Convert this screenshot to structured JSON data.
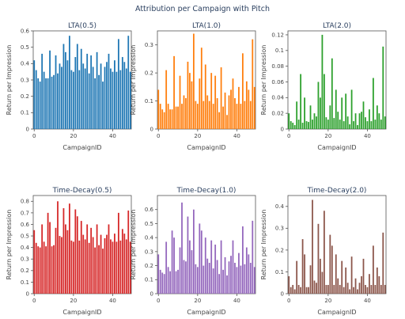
{
  "figure": {
    "title": "Attribution per Campaign with Pitch"
  },
  "chart_data": [
    {
      "type": "bar",
      "title": "LTA(0.5)",
      "xlabel": "CampaignID",
      "ylabel": "Return per Impression",
      "color": "#1f77b4",
      "ylim": [
        0,
        0.6
      ],
      "yticks": [
        0,
        0.1,
        0.2,
        0.3,
        0.4,
        0.5,
        0.6
      ],
      "xticks": [
        0,
        20,
        40
      ],
      "x": [
        0,
        1,
        2,
        3,
        4,
        5,
        6,
        7,
        8,
        9,
        10,
        11,
        12,
        13,
        14,
        15,
        16,
        17,
        18,
        19,
        20,
        21,
        22,
        23,
        24,
        25,
        26,
        27,
        28,
        29,
        30,
        31,
        32,
        33,
        34,
        35,
        36,
        37,
        38,
        39,
        40,
        41,
        42,
        43,
        44,
        45,
        46,
        47,
        48,
        49
      ],
      "values": [
        0.42,
        0.36,
        0.31,
        0.29,
        0.46,
        0.35,
        0.31,
        0.31,
        0.48,
        0.32,
        0.33,
        0.45,
        0.34,
        0.4,
        0.38,
        0.52,
        0.47,
        0.42,
        0.57,
        0.36,
        0.35,
        0.44,
        0.52,
        0.36,
        0.49,
        0.4,
        0.37,
        0.46,
        0.34,
        0.45,
        0.38,
        0.31,
        0.47,
        0.33,
        0.4,
        0.29,
        0.38,
        0.41,
        0.46,
        0.37,
        0.35,
        0.42,
        0.35,
        0.55,
        0.36,
        0.44,
        0.41,
        0.37,
        0.57,
        0.35
      ]
    },
    {
      "type": "bar",
      "title": "LTA(1.0)",
      "xlabel": "CampaignID",
      "ylabel": "Return per Impression",
      "color": "#ff7f0e",
      "ylim": [
        0,
        0.35
      ],
      "yticks": [
        0,
        0.1,
        0.2,
        0.3
      ],
      "xticks": [
        0,
        20,
        40
      ],
      "x": [
        0,
        1,
        2,
        3,
        4,
        5,
        6,
        7,
        8,
        9,
        10,
        11,
        12,
        13,
        14,
        15,
        16,
        17,
        18,
        19,
        20,
        21,
        22,
        23,
        24,
        25,
        26,
        27,
        28,
        29,
        30,
        31,
        32,
        33,
        34,
        35,
        36,
        37,
        38,
        39,
        40,
        41,
        42,
        43,
        44,
        45,
        46,
        47,
        48,
        49
      ],
      "values": [
        0.14,
        0.09,
        0.07,
        0.06,
        0.21,
        0.09,
        0.07,
        0.07,
        0.26,
        0.08,
        0.08,
        0.19,
        0.09,
        0.12,
        0.11,
        0.24,
        0.2,
        0.17,
        0.34,
        0.1,
        0.09,
        0.18,
        0.29,
        0.1,
        0.23,
        0.12,
        0.1,
        0.2,
        0.09,
        0.19,
        0.11,
        0.06,
        0.22,
        0.08,
        0.13,
        0.05,
        0.12,
        0.14,
        0.18,
        0.11,
        0.09,
        0.15,
        0.09,
        0.27,
        0.1,
        0.17,
        0.14,
        0.1,
        0.32,
        0.15
      ]
    },
    {
      "type": "bar",
      "title": "LTA(2.0)",
      "xlabel": "CampaignID",
      "ylabel": "Return per Impression",
      "color": "#2ca02c",
      "ylim": [
        0,
        0.125
      ],
      "yticks": [
        0,
        0.02,
        0.04,
        0.06,
        0.08,
        0.1,
        0.12
      ],
      "xticks": [
        0,
        20,
        40
      ],
      "x": [
        0,
        1,
        2,
        3,
        4,
        5,
        6,
        7,
        8,
        9,
        10,
        11,
        12,
        13,
        14,
        15,
        16,
        17,
        18,
        19,
        20,
        21,
        22,
        23,
        24,
        25,
        26,
        27,
        28,
        29,
        30,
        31,
        32,
        33,
        34,
        35,
        36,
        37,
        38,
        39,
        40,
        41,
        42,
        43,
        44,
        45,
        46,
        47,
        48,
        49
      ],
      "values": [
        0.02,
        0.01,
        0.008,
        0.005,
        0.035,
        0.012,
        0.07,
        0.008,
        0.04,
        0.01,
        0.009,
        0.03,
        0.012,
        0.02,
        0.016,
        0.06,
        0.04,
        0.12,
        0.07,
        0.015,
        0.012,
        0.03,
        0.09,
        0.014,
        0.05,
        0.022,
        0.012,
        0.04,
        0.01,
        0.045,
        0.016,
        0.006,
        0.05,
        0.01,
        0.02,
        0.005,
        0.02,
        0.022,
        0.035,
        0.015,
        0.01,
        0.025,
        0.01,
        0.065,
        0.012,
        0.03,
        0.02,
        0.012,
        0.105,
        0.016
      ]
    },
    {
      "type": "bar",
      "title": "Time-Decay(0.5)",
      "xlabel": "CampaignID",
      "ylabel": "Return per Impression",
      "color": "#d62728",
      "ylim": [
        0,
        0.85
      ],
      "yticks": [
        0,
        0.1,
        0.2,
        0.3,
        0.4,
        0.5,
        0.6,
        0.7,
        0.8
      ],
      "xticks": [
        0,
        20,
        40
      ],
      "x": [
        0,
        1,
        2,
        3,
        4,
        5,
        6,
        7,
        8,
        9,
        10,
        11,
        12,
        13,
        14,
        15,
        16,
        17,
        18,
        19,
        20,
        21,
        22,
        23,
        24,
        25,
        26,
        27,
        28,
        29,
        30,
        31,
        32,
        33,
        34,
        35,
        36,
        37,
        38,
        39,
        40,
        41,
        42,
        43,
        44,
        45,
        46,
        47,
        48,
        49
      ],
      "values": [
        0.55,
        0.44,
        0.41,
        0.4,
        0.6,
        0.45,
        0.41,
        0.7,
        0.62,
        0.41,
        0.42,
        0.57,
        0.8,
        0.5,
        0.49,
        0.74,
        0.6,
        0.55,
        0.78,
        0.46,
        0.45,
        0.73,
        0.67,
        0.46,
        0.63,
        0.51,
        0.47,
        0.6,
        0.44,
        0.57,
        0.49,
        0.4,
        0.6,
        0.42,
        0.51,
        0.39,
        0.48,
        0.51,
        0.6,
        0.47,
        0.45,
        0.52,
        0.45,
        0.7,
        0.46,
        0.56,
        0.52,
        0.47,
        0.72,
        0.45
      ]
    },
    {
      "type": "bar",
      "title": "Time-Decay(1.0)",
      "xlabel": "CampaignID",
      "ylabel": "Return per Impression",
      "color": "#9467bd",
      "ylim": [
        0,
        0.7
      ],
      "yticks": [
        0,
        0.1,
        0.2,
        0.3,
        0.4,
        0.5,
        0.6
      ],
      "xticks": [
        0,
        20,
        40
      ],
      "x": [
        0,
        1,
        2,
        3,
        4,
        5,
        6,
        7,
        8,
        9,
        10,
        11,
        12,
        13,
        14,
        15,
        16,
        17,
        18,
        19,
        20,
        21,
        22,
        23,
        24,
        25,
        26,
        27,
        28,
        29,
        30,
        31,
        32,
        33,
        34,
        35,
        36,
        37,
        38,
        39,
        40,
        41,
        42,
        43,
        44,
        45,
        46,
        47,
        48,
        49
      ],
      "values": [
        0.28,
        0.17,
        0.15,
        0.14,
        0.37,
        0.19,
        0.16,
        0.45,
        0.4,
        0.16,
        0.17,
        0.33,
        0.65,
        0.24,
        0.23,
        0.55,
        0.38,
        0.31,
        0.6,
        0.21,
        0.19,
        0.5,
        0.45,
        0.2,
        0.4,
        0.25,
        0.22,
        0.38,
        0.18,
        0.35,
        0.24,
        0.14,
        0.38,
        0.17,
        0.26,
        0.13,
        0.23,
        0.27,
        0.38,
        0.22,
        0.19,
        0.29,
        0.2,
        0.48,
        0.21,
        0.33,
        0.28,
        0.22,
        0.52,
        0.19
      ]
    },
    {
      "type": "bar",
      "title": "Time-Decay(2.0)",
      "xlabel": "CampaignID",
      "ylabel": "Return per Impression",
      "color": "#8c564b",
      "ylim": [
        0,
        0.45
      ],
      "yticks": [
        0,
        0.1,
        0.2,
        0.3,
        0.4
      ],
      "xticks": [
        0,
        20,
        40
      ],
      "x": [
        0,
        1,
        2,
        3,
        4,
        5,
        6,
        7,
        8,
        9,
        10,
        11,
        12,
        13,
        14,
        15,
        16,
        17,
        18,
        19,
        20,
        21,
        22,
        23,
        24,
        25,
        26,
        27,
        28,
        29,
        30,
        31,
        32,
        33,
        34,
        35,
        36,
        37,
        38,
        39,
        40,
        41,
        42,
        43,
        44,
        45,
        46,
        47,
        48,
        49
      ],
      "values": [
        0.08,
        0.03,
        0.04,
        0.02,
        0.15,
        0.04,
        0.03,
        0.25,
        0.18,
        0.03,
        0.03,
        0.13,
        0.43,
        0.06,
        0.05,
        0.32,
        0.16,
        0.1,
        0.38,
        0.04,
        0.04,
        0.27,
        0.22,
        0.04,
        0.18,
        0.07,
        0.04,
        0.15,
        0.03,
        0.12,
        0.05,
        0.02,
        0.17,
        0.03,
        0.07,
        0.02,
        0.05,
        0.08,
        0.16,
        0.04,
        0.03,
        0.09,
        0.04,
        0.22,
        0.04,
        0.12,
        0.08,
        0.04,
        0.28,
        0.04
      ]
    }
  ]
}
